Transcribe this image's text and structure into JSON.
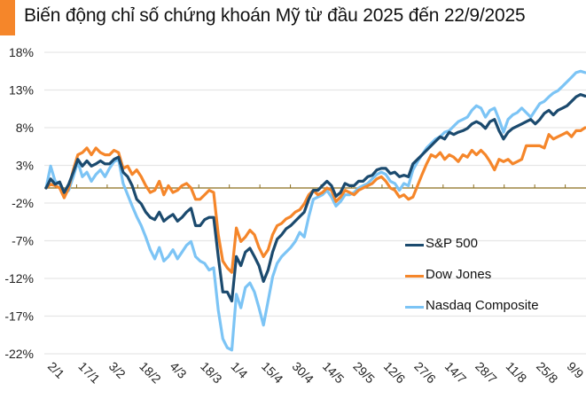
{
  "title": "Biến động chỉ số chứng khoán Mỹ từ đầu 2025 đến 22/9/2025",
  "colors": {
    "accent": "#f5862a",
    "sp500": "#1b4a6e",
    "dow": "#f5862a",
    "nasdaq": "#7cc4f5",
    "zero_line": "#8a6d1e",
    "grid": "#e6e6e6"
  },
  "chart_data": {
    "type": "line",
    "title": "Biến động chỉ số chứng khoán Mỹ từ đầu 2025 đến 22/9/2025",
    "xlabel": "",
    "ylabel": "",
    "ylim": [
      -22,
      18
    ],
    "yticks": [
      "18%",
      "13%",
      "8%",
      "3%",
      "-2%",
      "-7%",
      "-12%",
      "-17%",
      "-22%"
    ],
    "ytick_values": [
      18,
      13,
      8,
      3,
      -2,
      -7,
      -12,
      -17,
      -22
    ],
    "xticks": [
      "2/1",
      "17/1",
      "3/2",
      "18/2",
      "4/3",
      "18/3",
      "1/4",
      "15/4",
      "30/4",
      "14/5",
      "29/5",
      "12/6",
      "27/6",
      "14/7",
      "28/7",
      "11/8",
      "25/8",
      "9/9"
    ],
    "grid": true,
    "legend_position": "bottom-right",
    "x_points": 120,
    "series": [
      {
        "name": "S&P 500",
        "values": [
          0.0,
          1.2,
          0.5,
          0.8,
          -0.6,
          0.5,
          2.1,
          3.8,
          2.9,
          3.6,
          2.9,
          3.2,
          3.6,
          3.2,
          3.2,
          3.8,
          4.1,
          2.1,
          1.5,
          0.3,
          -1.5,
          -2.1,
          -3.2,
          -3.9,
          -4.2,
          -3.2,
          -4.4,
          -3.9,
          -3.5,
          -4.4,
          -3.9,
          -3.2,
          -2.7,
          -5.0,
          -5.0,
          -4.2,
          -3.9,
          -3.9,
          -9.1,
          -13.8,
          -13.8,
          -15.0,
          -9.1,
          -10.3,
          -8.5,
          -8.0,
          -9.1,
          -10.3,
          -12.4,
          -10.9,
          -8.5,
          -6.8,
          -6.2,
          -5.4,
          -5.0,
          -4.4,
          -3.8,
          -3.2,
          -1.5,
          -0.3,
          -0.3,
          0.3,
          0.9,
          0.3,
          -1.1,
          -0.6,
          0.6,
          0.3,
          0.3,
          0.9,
          0.9,
          1.5,
          1.7,
          2.4,
          2.6,
          2.6,
          1.9,
          2.1,
          1.5,
          1.7,
          1.5,
          3.2,
          3.8,
          4.4,
          5.0,
          5.6,
          6.2,
          6.8,
          6.5,
          7.4,
          7.1,
          7.4,
          7.6,
          7.9,
          8.5,
          8.8,
          8.5,
          7.9,
          8.8,
          9.1,
          7.6,
          6.5,
          7.4,
          7.9,
          8.2,
          8.5,
          8.8,
          9.1,
          8.5,
          9.1,
          9.9,
          10.3,
          9.7,
          10.3,
          10.6,
          10.9,
          11.5,
          12.1,
          12.4,
          12.2
        ]
      },
      {
        "name": "Dow Jones",
        "values": [
          0.0,
          0.5,
          0.3,
          0.0,
          -1.3,
          0.0,
          2.4,
          4.4,
          4.7,
          5.3,
          4.4,
          5.3,
          4.7,
          4.4,
          4.4,
          5.0,
          4.7,
          2.6,
          2.9,
          1.8,
          2.4,
          1.5,
          0.3,
          -0.6,
          -0.3,
          0.9,
          -0.9,
          0.3,
          -0.6,
          -0.3,
          0.3,
          0.6,
          0.0,
          -1.5,
          -1.5,
          -0.9,
          -0.3,
          -0.6,
          -6.2,
          -9.7,
          -10.6,
          -11.2,
          -5.3,
          -7.1,
          -6.5,
          -5.6,
          -6.2,
          -7.9,
          -9.1,
          -8.2,
          -6.2,
          -5.0,
          -4.7,
          -4.1,
          -3.8,
          -3.2,
          -2.9,
          -2.1,
          -0.9,
          -0.3,
          -0.9,
          -0.6,
          0.0,
          -0.3,
          -1.8,
          -1.2,
          -0.3,
          -0.6,
          -0.9,
          -0.3,
          0.0,
          0.3,
          0.6,
          1.2,
          1.5,
          0.9,
          0.0,
          -0.3,
          -1.2,
          -0.9,
          -1.5,
          -1.2,
          0.3,
          1.8,
          3.2,
          4.4,
          4.1,
          4.7,
          3.8,
          4.4,
          4.1,
          3.5,
          4.4,
          4.1,
          5.0,
          4.4,
          5.0,
          4.4,
          3.5,
          2.4,
          3.8,
          3.5,
          3.8,
          3.2,
          3.5,
          3.8,
          5.6,
          5.6,
          5.6,
          5.6,
          5.3,
          7.1,
          6.5,
          6.8,
          7.1,
          7.4,
          6.8,
          7.6,
          7.6,
          8.0
        ]
      },
      {
        "name": "Nasdaq Composite",
        "values": [
          0.0,
          2.9,
          0.9,
          0.6,
          -0.9,
          -0.3,
          1.5,
          3.5,
          1.5,
          2.1,
          0.9,
          1.8,
          2.4,
          1.5,
          2.6,
          3.5,
          3.8,
          0.6,
          -0.9,
          -2.4,
          -3.8,
          -5.0,
          -6.5,
          -8.2,
          -9.4,
          -7.9,
          -9.7,
          -9.1,
          -8.2,
          -9.4,
          -8.5,
          -7.6,
          -7.1,
          -9.1,
          -9.7,
          -10.0,
          -10.9,
          -10.6,
          -16.2,
          -20.0,
          -21.2,
          -21.5,
          -14.1,
          -15.9,
          -13.2,
          -12.6,
          -13.8,
          -15.9,
          -18.2,
          -15.0,
          -11.8,
          -10.0,
          -9.1,
          -8.5,
          -7.9,
          -7.1,
          -5.9,
          -6.5,
          -3.8,
          -1.5,
          -1.2,
          -0.9,
          -0.3,
          -1.2,
          -2.4,
          -1.8,
          -0.9,
          -0.9,
          -0.6,
          0.0,
          0.3,
          0.6,
          1.2,
          1.8,
          2.1,
          1.8,
          0.9,
          0.6,
          -0.3,
          0.6,
          0.3,
          2.4,
          3.5,
          4.4,
          5.3,
          5.9,
          6.5,
          6.8,
          7.4,
          7.6,
          8.2,
          8.8,
          9.1,
          9.4,
          10.3,
          10.9,
          10.6,
          9.4,
          10.3,
          10.6,
          9.1,
          7.4,
          9.1,
          9.7,
          10.0,
          10.6,
          10.0,
          9.4,
          10.3,
          11.2,
          11.5,
          12.1,
          12.6,
          12.9,
          13.5,
          14.1,
          14.7,
          15.3,
          15.5,
          15.3
        ]
      }
    ]
  }
}
